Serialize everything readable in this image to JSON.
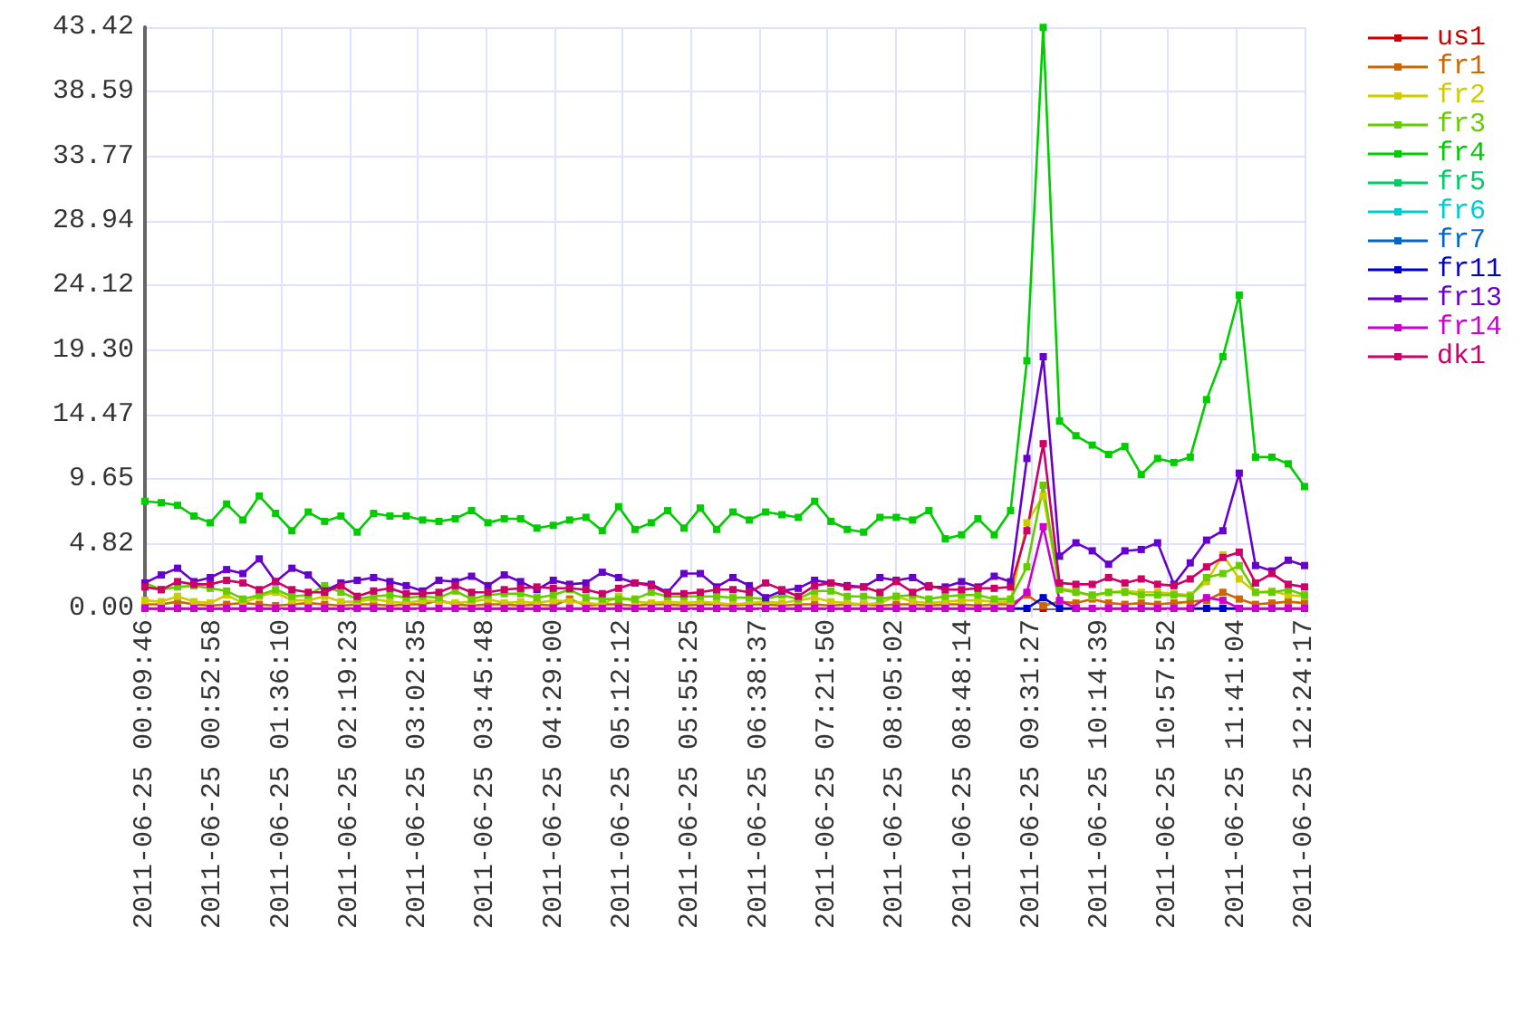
{
  "chart_data": {
    "type": "line",
    "x": [
      "2011-06-25T00:09:46",
      "2011-06-25T00:20:07",
      "2011-06-25T00:30:27",
      "2011-06-25T00:40:48",
      "2011-06-25T00:51:09",
      "2011-06-25T01:01:30",
      "2011-06-25T01:11:50",
      "2011-06-25T01:22:11",
      "2011-06-25T01:32:32",
      "2011-06-25T01:42:52",
      "2011-06-25T01:53:13",
      "2011-06-25T02:03:34",
      "2011-06-25T02:13:55",
      "2011-06-25T02:24:15",
      "2011-06-25T02:34:36",
      "2011-06-25T02:44:57",
      "2011-06-25T02:55:17",
      "2011-06-25T03:05:38",
      "2011-06-25T03:15:59",
      "2011-06-25T03:26:20",
      "2011-06-25T03:36:40",
      "2011-06-25T03:47:01",
      "2011-06-25T03:57:22",
      "2011-06-25T04:07:43",
      "2011-06-25T04:18:03",
      "2011-06-25T04:28:24",
      "2011-06-25T04:38:45",
      "2011-06-25T04:49:05",
      "2011-06-25T04:59:26",
      "2011-06-25T05:09:47",
      "2011-06-25T05:20:08",
      "2011-06-25T05:30:28",
      "2011-06-25T05:40:49",
      "2011-06-25T05:51:10",
      "2011-06-25T06:01:30",
      "2011-06-25T06:11:51",
      "2011-06-25T06:22:12",
      "2011-06-25T06:32:33",
      "2011-06-25T06:42:53",
      "2011-06-25T06:53:14",
      "2011-06-25T07:03:35",
      "2011-06-25T07:13:55",
      "2011-06-25T07:24:16",
      "2011-06-25T07:34:37",
      "2011-06-25T07:44:58",
      "2011-06-25T07:55:18",
      "2011-06-25T08:05:39",
      "2011-06-25T08:16:00",
      "2011-06-25T08:26:20",
      "2011-06-25T08:36:41",
      "2011-06-25T08:47:02",
      "2011-06-25T08:57:23",
      "2011-06-25T09:07:43",
      "2011-06-25T09:18:04",
      "2011-06-25T09:28:25",
      "2011-06-25T09:38:45",
      "2011-06-25T09:49:06",
      "2011-06-25T09:59:27",
      "2011-06-25T10:09:48",
      "2011-06-25T10:20:08",
      "2011-06-25T10:30:29",
      "2011-06-25T10:40:50",
      "2011-06-25T10:51:11",
      "2011-06-25T11:01:31",
      "2011-06-25T11:11:52",
      "2011-06-25T11:22:13",
      "2011-06-25T11:32:33",
      "2011-06-25T11:42:54",
      "2011-06-25T11:53:15",
      "2011-06-25T12:03:36",
      "2011-06-25T12:13:56",
      "2011-06-25T12:24:17"
    ],
    "xlim": [
      "2011-06-25T00:09:46",
      "2011-06-25T12:24:17"
    ],
    "xticks": [
      {
        "value": "2011-06-25T00:09:46",
        "label": "2011-06-25 00:09:46"
      },
      {
        "value": "2011-06-25T00:52:58",
        "label": "2011-06-25 00:52:58"
      },
      {
        "value": "2011-06-25T01:36:10",
        "label": "2011-06-25 01:36:10"
      },
      {
        "value": "2011-06-25T02:19:23",
        "label": "2011-06-25 02:19:23"
      },
      {
        "value": "2011-06-25T03:02:35",
        "label": "2011-06-25 03:02:35"
      },
      {
        "value": "2011-06-25T03:45:48",
        "label": "2011-06-25 03:45:48"
      },
      {
        "value": "2011-06-25T04:29:00",
        "label": "2011-06-25 04:29:00"
      },
      {
        "value": "2011-06-25T05:12:12",
        "label": "2011-06-25 05:12:12"
      },
      {
        "value": "2011-06-25T05:55:25",
        "label": "2011-06-25 05:55:25"
      },
      {
        "value": "2011-06-25T06:38:37",
        "label": "2011-06-25 06:38:37"
      },
      {
        "value": "2011-06-25T07:21:50",
        "label": "2011-06-25 07:21:50"
      },
      {
        "value": "2011-06-25T08:05:02",
        "label": "2011-06-25 08:05:02"
      },
      {
        "value": "2011-06-25T08:48:14",
        "label": "2011-06-25 08:48:14"
      },
      {
        "value": "2011-06-25T09:31:27",
        "label": "2011-06-25 09:31:27"
      },
      {
        "value": "2011-06-25T10:14:39",
        "label": "2011-06-25 10:14:39"
      },
      {
        "value": "2011-06-25T10:57:52",
        "label": "2011-06-25 10:57:52"
      },
      {
        "value": "2011-06-25T11:41:04",
        "label": "2011-06-25 11:41:04"
      },
      {
        "value": "2011-06-25T12:24:17",
        "label": "2011-06-25 12:24:17"
      }
    ],
    "ylim": [
      0,
      43.42
    ],
    "yticks": [
      {
        "value": 0,
        "label": "0.00"
      },
      4.82,
      9.65,
      14.47,
      {
        "value": 19.3,
        "label": "19.30"
      },
      24.12,
      28.94,
      33.77,
      38.59,
      43.42
    ],
    "grid": true,
    "legend": "top right",
    "marker": "square",
    "line_style": "solid",
    "series": [
      {
        "name": "us1",
        "color": "#cc0000",
        "values": [
          null,
          null,
          null,
          null,
          null,
          null,
          null,
          null,
          null,
          null,
          null,
          null,
          null,
          null,
          null,
          null,
          null,
          null,
          null,
          null,
          null,
          null,
          null,
          null,
          null,
          null,
          null,
          null,
          null,
          null,
          null,
          null,
          null,
          null,
          null,
          null,
          null,
          null,
          null,
          null,
          null,
          null,
          null,
          null,
          null,
          null,
          null,
          null,
          null,
          null,
          null,
          null,
          null,
          null,
          null,
          0,
          null,
          null,
          null,
          null,
          null,
          null,
          null,
          null,
          null,
          null,
          null,
          null,
          null,
          null,
          null,
          null
        ]
      },
      {
        "name": "fr1",
        "color": "#cc6600",
        "values": [
          0.3,
          0.3,
          0.5,
          0.3,
          0.2,
          0.3,
          0.4,
          0.3,
          0.2,
          0.3,
          0.4,
          0.3,
          0.2,
          0.3,
          0.3,
          0.2,
          0.3,
          0.3,
          0.6,
          0.3,
          0.2,
          0.3,
          0.3,
          0.2,
          0.3,
          0.2,
          0.7,
          0.2,
          0.3,
          0.3,
          0.2,
          0.3,
          0.3,
          0.2,
          0.3,
          0.3,
          0.2,
          0.3,
          0.3,
          0.2,
          0.3,
          0.3,
          0.2,
          0.3,
          0.3,
          0.2,
          0.3,
          0.3,
          0.2,
          0.3,
          0.3,
          0.2,
          0.3,
          0.3,
          1.0,
          0.2,
          0.5,
          0.4,
          0.7,
          0.4,
          0.3,
          0.4,
          0.3,
          0.4,
          0.5,
          0.6,
          1.2,
          0.7,
          0.3,
          0.4,
          0.5,
          0.4
        ]
      },
      {
        "name": "fr2",
        "color": "#cccc00",
        "values": [
          0.6,
          0.5,
          0.9,
          0.5,
          0.4,
          1.0,
          0.4,
          0.9,
          1.2,
          0.6,
          0.6,
          0.9,
          0.5,
          0.5,
          0.7,
          0.5,
          0.4,
          0.6,
          0.5,
          0.4,
          0.5,
          0.7,
          0.4,
          0.5,
          0.4,
          0.6,
          0.5,
          0.4,
          0.3,
          0.9,
          0.5,
          0.4,
          0.5,
          0.4,
          0.5,
          0.4,
          0.3,
          0.4,
          0.5,
          0.4,
          0.6,
          0.8,
          0.5,
          0.4,
          0.3,
          0.4,
          0.9,
          0.5,
          0.4,
          0.5,
          0.6,
          0.6,
          0.5,
          0.5,
          6.4,
          8.4,
          1.5,
          1.3,
          0.9,
          1.2,
          1.3,
          1.2,
          1.2,
          1.1,
          1.0,
          2.0,
          4.0,
          2.2,
          1.2,
          1.3,
          1.0,
          0.9
        ]
      },
      {
        "name": "fr3",
        "color": "#66cc00",
        "values": [
          1.9,
          1.4,
          1.6,
          1.7,
          1.5,
          1.3,
          0.7,
          1.0,
          1.4,
          0.9,
          1.0,
          1.7,
          1.2,
          0.7,
          0.9,
          1.0,
          0.8,
          0.9,
          0.8,
          1.3,
          0.7,
          1.0,
          1.1,
          1.1,
          0.8,
          1.0,
          1.4,
          0.8,
          0.7,
          0.7,
          0.7,
          1.2,
          0.9,
          0.9,
          0.9,
          0.9,
          0.8,
          0.8,
          0.7,
          1.0,
          0.7,
          1.3,
          1.3,
          0.9,
          0.9,
          0.7,
          0.9,
          1.0,
          0.7,
          0.9,
          1.0,
          1.0,
          0.7,
          0.7,
          3.1,
          9.2,
          1.4,
          1.2,
          1.0,
          1.2,
          1.2,
          1.0,
          1.0,
          1.0,
          0.9,
          2.3,
          2.6,
          3.2,
          1.2,
          1.2,
          1.4,
          1.0
        ]
      },
      {
        "name": "fr4",
        "color": "#00cc00",
        "values": [
          8.0,
          7.9,
          7.7,
          6.9,
          6.4,
          7.8,
          6.6,
          8.4,
          7.1,
          5.8,
          7.2,
          6.5,
          6.9,
          5.7,
          7.1,
          6.9,
          6.9,
          6.6,
          6.5,
          6.7,
          7.3,
          6.4,
          6.7,
          6.7,
          6.0,
          6.2,
          6.6,
          6.8,
          5.8,
          7.6,
          5.9,
          6.4,
          7.3,
          6.0,
          7.5,
          5.9,
          7.2,
          6.6,
          7.2,
          7.0,
          6.8,
          8.0,
          6.5,
          5.9,
          5.7,
          6.8,
          6.8,
          6.6,
          7.3,
          5.2,
          5.5,
          6.7,
          5.5,
          7.3,
          18.5,
          43.4,
          14.0,
          12.9,
          12.2,
          11.5,
          12.1,
          10.0,
          11.2,
          10.9,
          11.3,
          15.6,
          18.8,
          23.4,
          11.3,
          11.3,
          10.8,
          9.1
        ]
      },
      {
        "name": "fr5",
        "color": "#00cc66",
        "values": [
          null,
          null,
          null,
          null,
          null,
          null,
          null,
          null,
          null,
          null,
          null,
          null,
          null,
          null,
          null,
          null,
          null,
          null,
          null,
          null,
          null,
          null,
          null,
          null,
          null,
          null,
          null,
          null,
          null,
          null,
          null,
          null,
          null,
          null,
          null,
          null,
          null,
          null,
          null,
          null,
          null,
          null,
          null,
          null,
          null,
          null,
          null,
          null,
          null,
          null,
          null,
          null,
          null,
          null,
          null,
          null,
          null,
          null,
          null,
          null,
          null,
          null,
          null,
          null,
          null,
          null,
          null,
          null,
          null,
          null,
          null,
          null
        ]
      },
      {
        "name": "fr6",
        "color": "#00cccc",
        "values": [
          null,
          null,
          null,
          null,
          null,
          null,
          null,
          null,
          null,
          null,
          null,
          null,
          null,
          null,
          null,
          null,
          null,
          null,
          null,
          null,
          null,
          null,
          null,
          null,
          null,
          null,
          null,
          null,
          null,
          null,
          null,
          null,
          null,
          null,
          null,
          null,
          null,
          null,
          null,
          null,
          null,
          null,
          null,
          null,
          null,
          null,
          null,
          null,
          null,
          null,
          null,
          null,
          null,
          null,
          null,
          null,
          null,
          null,
          null,
          null,
          null,
          null,
          null,
          null,
          null,
          null,
          null,
          null,
          null,
          null,
          null,
          null
        ]
      },
      {
        "name": "fr7",
        "color": "#0066cc",
        "values": [
          null,
          null,
          null,
          null,
          null,
          null,
          null,
          null,
          null,
          null,
          null,
          null,
          null,
          null,
          null,
          null,
          null,
          null,
          null,
          null,
          null,
          null,
          null,
          null,
          null,
          null,
          null,
          null,
          null,
          null,
          null,
          null,
          null,
          null,
          null,
          null,
          null,
          null,
          null,
          null,
          null,
          null,
          null,
          null,
          null,
          null,
          null,
          null,
          null,
          null,
          null,
          null,
          null,
          null,
          null,
          null,
          null,
          null,
          null,
          null,
          null,
          null,
          null,
          null,
          null,
          null,
          null,
          null,
          null,
          null,
          null,
          null
        ]
      },
      {
        "name": "fr11",
        "color": "#0000cc",
        "values": [
          null,
          null,
          null,
          null,
          null,
          null,
          null,
          null,
          null,
          null,
          null,
          null,
          null,
          null,
          null,
          null,
          null,
          null,
          null,
          null,
          null,
          null,
          null,
          null,
          null,
          null,
          null,
          null,
          null,
          null,
          null,
          null,
          null,
          null,
          null,
          null,
          null,
          null,
          null,
          null,
          null,
          null,
          null,
          null,
          null,
          null,
          null,
          null,
          null,
          null,
          null,
          null,
          null,
          0,
          0,
          0.8,
          0,
          0,
          null,
          null,
          null,
          null,
          null,
          null,
          0,
          0,
          0,
          0,
          null,
          null,
          null,
          null
        ]
      },
      {
        "name": "fr13",
        "color": "#6600cc",
        "values": [
          1.9,
          2.5,
          3.0,
          2.0,
          2.3,
          2.9,
          2.6,
          3.7,
          2.0,
          3.0,
          2.5,
          1.3,
          1.9,
          2.1,
          2.3,
          2.0,
          1.7,
          1.3,
          2.1,
          2.0,
          2.4,
          1.7,
          2.5,
          2.0,
          1.4,
          2.1,
          1.8,
          1.9,
          2.7,
          2.3,
          1.9,
          1.8,
          1.2,
          2.6,
          2.6,
          1.6,
          2.3,
          1.7,
          0.8,
          1.3,
          1.5,
          2.1,
          1.9,
          1.7,
          1.6,
          2.3,
          2.1,
          2.3,
          1.6,
          1.6,
          2.0,
          1.6,
          2.4,
          2.0,
          11.2,
          18.8,
          3.9,
          4.9,
          4.3,
          3.3,
          4.3,
          4.4,
          4.9,
          1.8,
          3.4,
          5.1,
          5.8,
          10.1,
          3.2,
          2.8,
          3.6,
          3.2
        ]
      },
      {
        "name": "fr14",
        "color": "#cc00cc",
        "values": [
          0,
          0,
          0,
          0,
          0,
          0,
          0,
          0,
          0,
          0,
          0,
          0,
          0,
          0,
          0,
          0,
          0,
          0,
          0,
          0,
          0,
          0,
          0,
          0,
          0,
          0,
          0,
          0,
          0,
          0,
          0,
          0,
          0,
          0,
          0,
          0,
          0,
          0,
          0,
          0,
          0,
          0,
          0,
          0,
          0,
          0,
          0,
          0,
          0,
          0,
          0,
          0,
          0,
          0,
          1.2,
          6.1,
          0.6,
          0,
          0,
          0,
          0,
          0,
          0,
          0,
          0,
          0.8,
          0.6,
          0,
          0,
          0,
          0,
          0
        ]
      },
      {
        "name": "dk1",
        "color": "#cc0066",
        "values": [
          1.6,
          1.4,
          2.0,
          1.8,
          1.8,
          2.1,
          1.9,
          1.4,
          2.0,
          1.4,
          1.2,
          1.2,
          1.7,
          0.9,
          1.3,
          1.5,
          1.1,
          1.1,
          1.2,
          1.7,
          1.2,
          1.2,
          1.4,
          1.5,
          1.6,
          1.5,
          1.5,
          1.4,
          1.1,
          1.5,
          1.9,
          1.7,
          1.1,
          1.1,
          1.2,
          1.4,
          1.4,
          1.2,
          1.9,
          1.4,
          0.9,
          1.7,
          1.9,
          1.6,
          1.6,
          1.2,
          2.0,
          1.2,
          1.7,
          1.4,
          1.4,
          1.5,
          1.5,
          1.6,
          5.8,
          12.3,
          1.9,
          1.8,
          1.8,
          2.3,
          1.9,
          2.2,
          1.8,
          1.7,
          2.2,
          3.1,
          3.8,
          4.2,
          1.9,
          2.6,
          1.8,
          1.6
        ]
      }
    ]
  }
}
